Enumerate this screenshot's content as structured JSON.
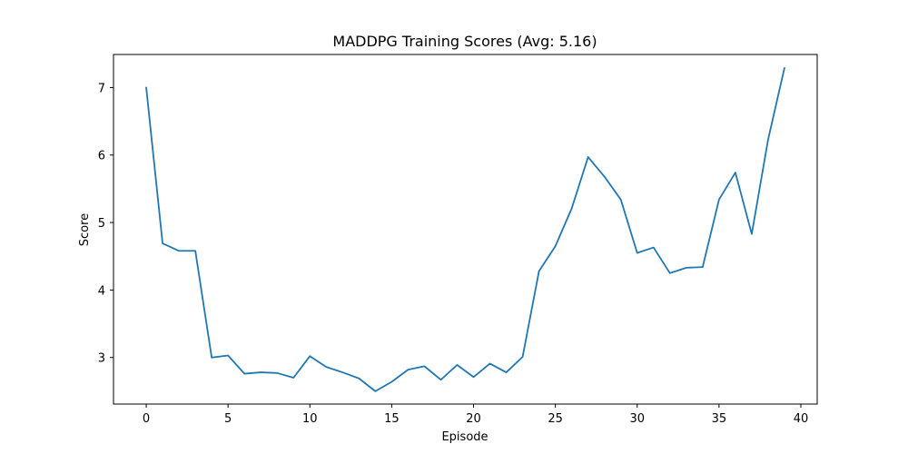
{
  "chart_data": {
    "type": "line",
    "title": "MADDPG Training Scores (Avg: 5.16)",
    "xlabel": "Episode",
    "ylabel": "Score",
    "xlim": [
      -2,
      41
    ],
    "ylim": [
      2.31,
      7.49
    ],
    "xticks": [
      0,
      5,
      10,
      15,
      20,
      25,
      30,
      35,
      40
    ],
    "yticks": [
      3,
      4,
      5,
      6,
      7
    ],
    "grid": false,
    "series": [
      {
        "color": "#1f77b4",
        "x": [
          0,
          1,
          2,
          3,
          4,
          5,
          6,
          7,
          8,
          9,
          10,
          11,
          12,
          13,
          14,
          15,
          16,
          17,
          18,
          19,
          20,
          21,
          22,
          23,
          24,
          25,
          26,
          27,
          28,
          29,
          30,
          31,
          32,
          33,
          34,
          35,
          36,
          37,
          38,
          39
        ],
        "y": [
          7.0,
          4.69,
          4.58,
          4.58,
          3.0,
          3.03,
          2.76,
          2.78,
          2.77,
          2.7,
          3.02,
          2.86,
          2.78,
          2.69,
          2.5,
          2.64,
          2.82,
          2.87,
          2.67,
          2.89,
          2.71,
          2.91,
          2.78,
          3.01,
          4.28,
          4.65,
          5.21,
          5.97,
          5.68,
          5.34,
          4.55,
          4.63,
          4.25,
          4.33,
          4.34,
          5.34,
          5.74,
          4.83,
          6.23,
          7.29
        ]
      }
    ]
  }
}
